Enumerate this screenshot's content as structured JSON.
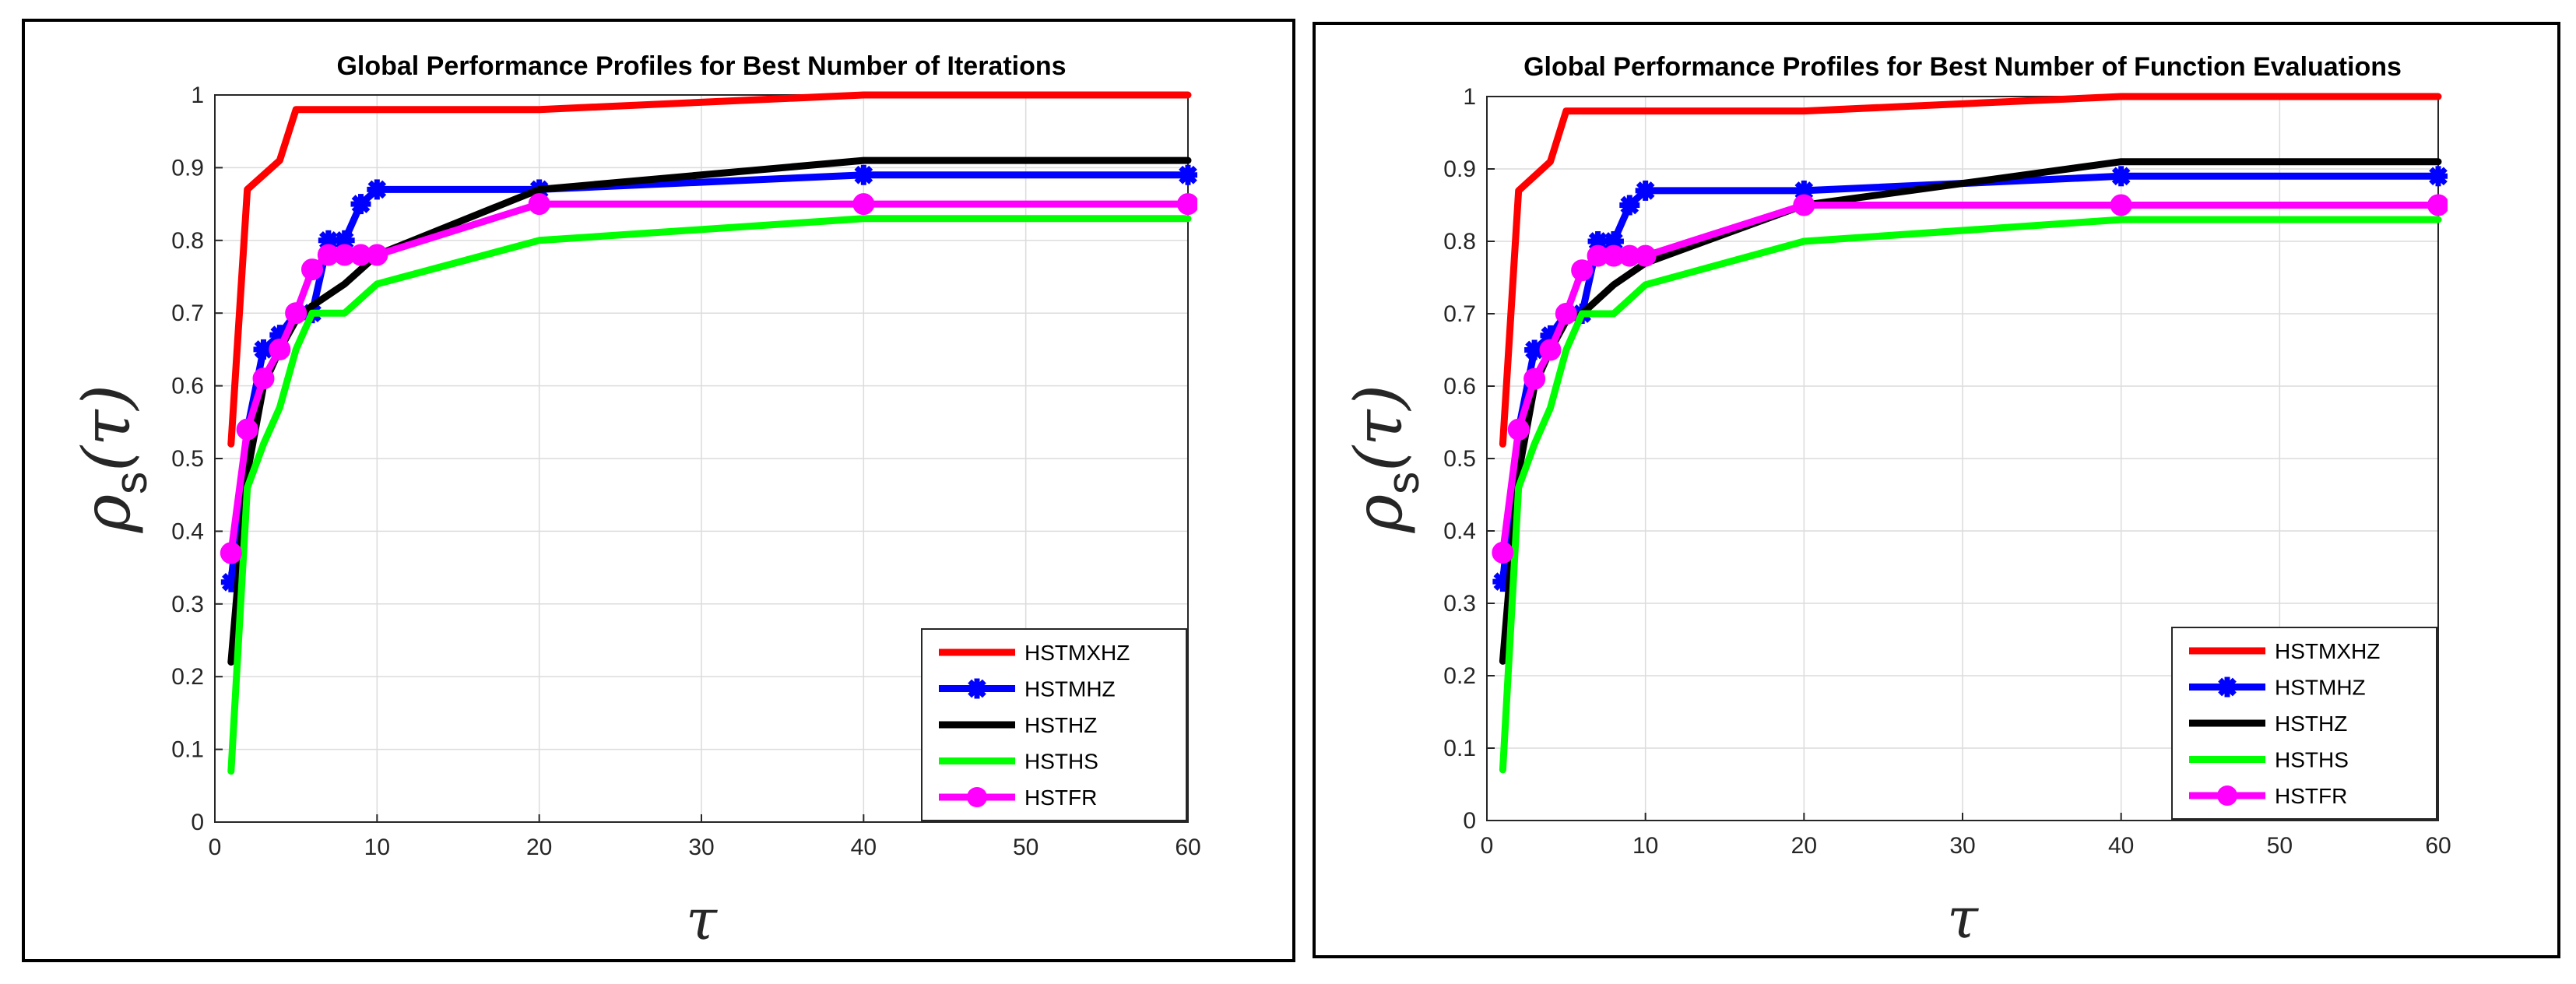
{
  "chart_data": [
    {
      "type": "line",
      "title": "Global Performance Profiles for Best Number of Iterations",
      "xlabel": "τ",
      "ylabel": "ρ",
      "ylabel_sub": "s",
      "ylabel_arg": "(τ)",
      "xlim": [
        0,
        60
      ],
      "ylim": [
        0,
        1
      ],
      "xticks": [
        "0",
        "10",
        "20",
        "30",
        "40",
        "50",
        "60"
      ],
      "yticks": [
        "0",
        "0.1",
        "0.2",
        "0.3",
        "0.4",
        "0.5",
        "0.6",
        "0.7",
        "0.8",
        "0.9",
        "1"
      ],
      "grid": true,
      "legend_position": "bottom-right",
      "series": [
        {
          "name": "HSTMXHZ",
          "color": "#ff0000",
          "marker": "none",
          "x": [
            1,
            2,
            4,
            5,
            6,
            7,
            8,
            10,
            20,
            40,
            60
          ],
          "y": [
            0.52,
            0.87,
            0.91,
            0.98,
            0.98,
            0.98,
            0.98,
            0.98,
            0.98,
            1.0,
            1.0
          ]
        },
        {
          "name": "HSTMHZ",
          "color": "#0000ff",
          "marker": "star",
          "x": [
            1,
            2,
            3,
            4,
            5,
            6,
            7,
            8,
            9,
            10,
            20,
            40,
            60
          ],
          "y": [
            0.33,
            0.54,
            0.65,
            0.67,
            0.7,
            0.7,
            0.8,
            0.8,
            0.85,
            0.87,
            0.87,
            0.89,
            0.89
          ]
        },
        {
          "name": "HSTHZ",
          "color": "#000000",
          "marker": "none",
          "x": [
            1,
            2,
            3,
            4,
            5,
            6,
            8,
            10,
            20,
            40,
            60
          ],
          "y": [
            0.22,
            0.48,
            0.6,
            0.65,
            0.69,
            0.71,
            0.74,
            0.78,
            0.87,
            0.91,
            0.91
          ]
        },
        {
          "name": "HSTHS",
          "color": "#00ff00",
          "marker": "none",
          "x": [
            1,
            2,
            3,
            4,
            5,
            6,
            8,
            10,
            20,
            40,
            60
          ],
          "y": [
            0.07,
            0.46,
            0.52,
            0.57,
            0.65,
            0.7,
            0.7,
            0.74,
            0.8,
            0.83,
            0.83
          ]
        },
        {
          "name": "HSTFR",
          "color": "#ff00ff",
          "marker": "circle",
          "x": [
            1,
            2,
            3,
            4,
            5,
            6,
            7,
            8,
            9,
            10,
            20,
            40,
            60
          ],
          "y": [
            0.37,
            0.54,
            0.61,
            0.65,
            0.7,
            0.76,
            0.78,
            0.78,
            0.78,
            0.78,
            0.85,
            0.85,
            0.85
          ]
        }
      ]
    },
    {
      "type": "line",
      "title": "Global Performance Profiles for Best Number of Function Evaluations",
      "xlabel": "τ",
      "ylabel": "ρ",
      "ylabel_sub": "s",
      "ylabel_arg": "(τ)",
      "xlim": [
        0,
        60
      ],
      "ylim": [
        0,
        1
      ],
      "xticks": [
        "0",
        "10",
        "20",
        "30",
        "40",
        "50",
        "60"
      ],
      "yticks": [
        "0",
        "0.1",
        "0.2",
        "0.3",
        "0.4",
        "0.5",
        "0.6",
        "0.7",
        "0.8",
        "0.9",
        "1"
      ],
      "grid": true,
      "legend_position": "bottom-right",
      "series": [
        {
          "name": "HSTMXHZ",
          "color": "#ff0000",
          "marker": "none",
          "x": [
            1,
            2,
            4,
            5,
            6,
            7,
            8,
            10,
            20,
            40,
            60
          ],
          "y": [
            0.52,
            0.87,
            0.91,
            0.98,
            0.98,
            0.98,
            0.98,
            0.98,
            0.98,
            1.0,
            1.0
          ]
        },
        {
          "name": "HSTMHZ",
          "color": "#0000ff",
          "marker": "star",
          "x": [
            1,
            2,
            3,
            4,
            5,
            6,
            7,
            8,
            9,
            10,
            20,
            40,
            60
          ],
          "y": [
            0.33,
            0.54,
            0.65,
            0.67,
            0.7,
            0.7,
            0.8,
            0.8,
            0.85,
            0.87,
            0.87,
            0.89,
            0.89
          ]
        },
        {
          "name": "HSTHZ",
          "color": "#000000",
          "marker": "none",
          "x": [
            1,
            2,
            3,
            4,
            5,
            6,
            8,
            10,
            20,
            30,
            40,
            60
          ],
          "y": [
            0.22,
            0.48,
            0.6,
            0.65,
            0.69,
            0.7,
            0.74,
            0.77,
            0.85,
            0.88,
            0.91,
            0.91
          ]
        },
        {
          "name": "HSTHS",
          "color": "#00ff00",
          "marker": "none",
          "x": [
            1,
            2,
            3,
            4,
            5,
            6,
            8,
            10,
            20,
            40,
            60
          ],
          "y": [
            0.07,
            0.46,
            0.52,
            0.57,
            0.65,
            0.7,
            0.7,
            0.74,
            0.8,
            0.83,
            0.83
          ]
        },
        {
          "name": "HSTFR",
          "color": "#ff00ff",
          "marker": "circle",
          "x": [
            1,
            2,
            3,
            4,
            5,
            6,
            7,
            8,
            9,
            10,
            20,
            40,
            60
          ],
          "y": [
            0.37,
            0.54,
            0.61,
            0.65,
            0.7,
            0.76,
            0.78,
            0.78,
            0.78,
            0.78,
            0.85,
            0.85,
            0.85
          ]
        }
      ]
    }
  ]
}
